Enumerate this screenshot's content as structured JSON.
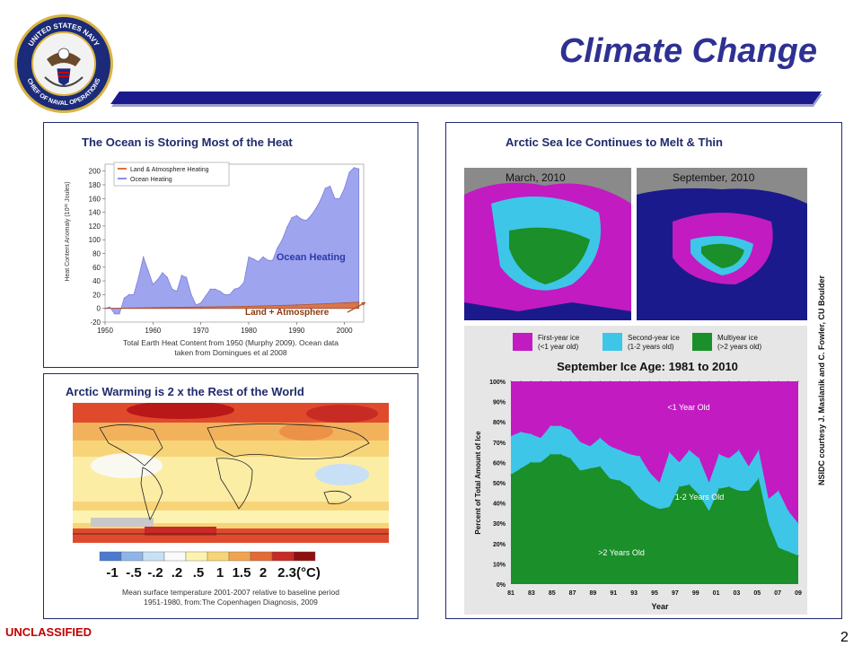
{
  "header": {
    "title": "Climate Change",
    "seal_text_top": "UNITED STATES NAVY",
    "seal_text_bottom": "CHIEF OF NAVAL OPERATIONS"
  },
  "ocean_panel": {
    "title": "The Ocean is Storing Most of the Heat",
    "caption_line1": "Total Earth Heat Content from 1950 (Murphy 2009). Ocean data",
    "caption_line2": "taken from Domingues et al 2008",
    "chart_data": {
      "type": "area",
      "title": "",
      "ylabel": "Heat Content Anomaly (10²¹ Joules)",
      "xlabel": "",
      "xlim": [
        1950,
        2004
      ],
      "ylim": [
        -20,
        210
      ],
      "x_ticks": [
        "1950",
        "1960",
        "1970",
        "1980",
        "1990",
        "2000"
      ],
      "y_ticks": [
        "-20",
        "0",
        "20",
        "40",
        "60",
        "80",
        "100",
        "120",
        "140",
        "160",
        "180",
        "200"
      ],
      "legend": [
        "Land & Atmosphere Heating",
        "Ocean Heating"
      ],
      "annotations": [
        "Ocean Heating",
        "Land + Atmosphere"
      ],
      "series": [
        {
          "name": "Ocean Heating",
          "color": "#9fa4ee",
          "x": [
            1950,
            1951,
            1952,
            1953,
            1954,
            1955,
            1956,
            1957,
            1958,
            1959,
            1960,
            1961,
            1962,
            1963,
            1964,
            1965,
            1966,
            1967,
            1968,
            1969,
            1970,
            1971,
            1972,
            1973,
            1974,
            1975,
            1976,
            1977,
            1978,
            1979,
            1980,
            1981,
            1982,
            1983,
            1984,
            1985,
            1986,
            1987,
            1988,
            1989,
            1990,
            1991,
            1992,
            1993,
            1994,
            1995,
            1996,
            1997,
            1998,
            1999,
            2000,
            2001,
            2002,
            2003
          ],
          "values": [
            0,
            2,
            -8,
            -8,
            15,
            20,
            20,
            45,
            75,
            55,
            35,
            42,
            52,
            45,
            28,
            25,
            48,
            45,
            20,
            5,
            8,
            18,
            28,
            28,
            25,
            20,
            20,
            28,
            30,
            38,
            75,
            72,
            68,
            75,
            70,
            70,
            88,
            100,
            118,
            132,
            135,
            130,
            128,
            135,
            145,
            158,
            175,
            178,
            160,
            160,
            175,
            198,
            205,
            203
          ]
        },
        {
          "name": "Land & Atmosphere Heating",
          "color": "#e0703a",
          "x": [
            1950,
            1960,
            1970,
            1980,
            1990,
            2000,
            2003
          ],
          "values": [
            0,
            1,
            2,
            3,
            5,
            8,
            9
          ]
        }
      ]
    }
  },
  "warming_panel": {
    "title": "Arctic Warming is 2 x the Rest of the World",
    "colorbar_labels": [
      "-1",
      "-.5",
      "-.2",
      ".2",
      ".5",
      "1",
      "1.5",
      "2",
      "2.3(°C)"
    ],
    "colorbar_colors": [
      "#4a7ad0",
      "#8fb5e8",
      "#c8e0f5",
      "#fafafa",
      "#fcf3b0",
      "#f8d478",
      "#f0a450",
      "#e46a36",
      "#c82a24",
      "#8f1010"
    ],
    "caption_line1": "Mean surface temperature 2001-2007 relative to baseline period",
    "caption_line2": "1951-1980, from:The Copenhagen Diagnosis, 2009"
  },
  "ice_panel": {
    "title": "Arctic Sea Ice Continues to Melt & Thin",
    "map_labels": [
      "March, 2010",
      "September, 2010"
    ],
    "legend": [
      {
        "label": "First-year ice",
        "sub": "(<1 year old)",
        "color": "#c21bc2"
      },
      {
        "label": "Second-year ice",
        "sub": "(1-2 years old)",
        "color": "#3ec6e8"
      },
      {
        "label": "Multiyear ice",
        "sub": "(>2 years old)",
        "color": "#1a8f2a"
      }
    ],
    "credit": "NSIDC courtesy J. Maslanik and C. Fowler, CU Boulder",
    "chart_data": {
      "type": "area",
      "title": "September Ice Age: 1981 to 2010",
      "xlabel": "Year",
      "ylabel": "Percent of Total Amount of Ice",
      "ylim": [
        0,
        100
      ],
      "y_ticks": [
        "0%",
        "10%",
        "20%",
        "30%",
        "40%",
        "50%",
        "60%",
        "70%",
        "80%",
        "90%",
        "100%"
      ],
      "x_ticks": [
        "81",
        "83",
        "85",
        "87",
        "89",
        "91",
        "93",
        "95",
        "97",
        "99",
        "01",
        "03",
        "05",
        "07",
        "09"
      ],
      "series_labels": [
        "<1 Year Old",
        "1-2 Years Old",
        ">2 Years Old"
      ],
      "years": [
        1981,
        1982,
        1983,
        1984,
        1985,
        1986,
        1987,
        1988,
        1989,
        1990,
        1991,
        1992,
        1993,
        1994,
        1995,
        1996,
        1997,
        1998,
        1999,
        2000,
        2001,
        2002,
        2003,
        2004,
        2005,
        2006,
        2007,
        2008,
        2009,
        2010
      ],
      "series": [
        {
          "name": ">2 Years Old",
          "color": "#1a8f2a",
          "values": [
            54,
            57,
            60,
            60,
            64,
            64,
            62,
            56,
            57,
            58,
            52,
            51,
            48,
            42,
            39,
            37,
            38,
            48,
            49,
            44,
            36,
            47,
            48,
            46,
            46,
            52,
            30,
            18,
            16,
            14
          ]
        },
        {
          "name": "1-2 Years Old",
          "color": "#3ec6e8",
          "values": [
            73,
            75,
            74,
            72,
            78,
            78,
            76,
            70,
            68,
            72,
            68,
            66,
            64,
            63,
            55,
            50,
            65,
            60,
            66,
            62,
            50,
            64,
            62,
            66,
            58,
            66,
            42,
            46,
            36,
            30
          ]
        },
        {
          "name": "<1 Year Old",
          "color": "#c21bc2",
          "values": [
            100,
            100,
            100,
            100,
            100,
            100,
            100,
            100,
            100,
            100,
            100,
            100,
            100,
            100,
            100,
            100,
            100,
            100,
            100,
            100,
            100,
            100,
            100,
            100,
            100,
            100,
            100,
            100,
            100,
            100
          ]
        }
      ]
    }
  },
  "footer": {
    "classification": "UNCLASSIFIED",
    "page_number": "2"
  }
}
